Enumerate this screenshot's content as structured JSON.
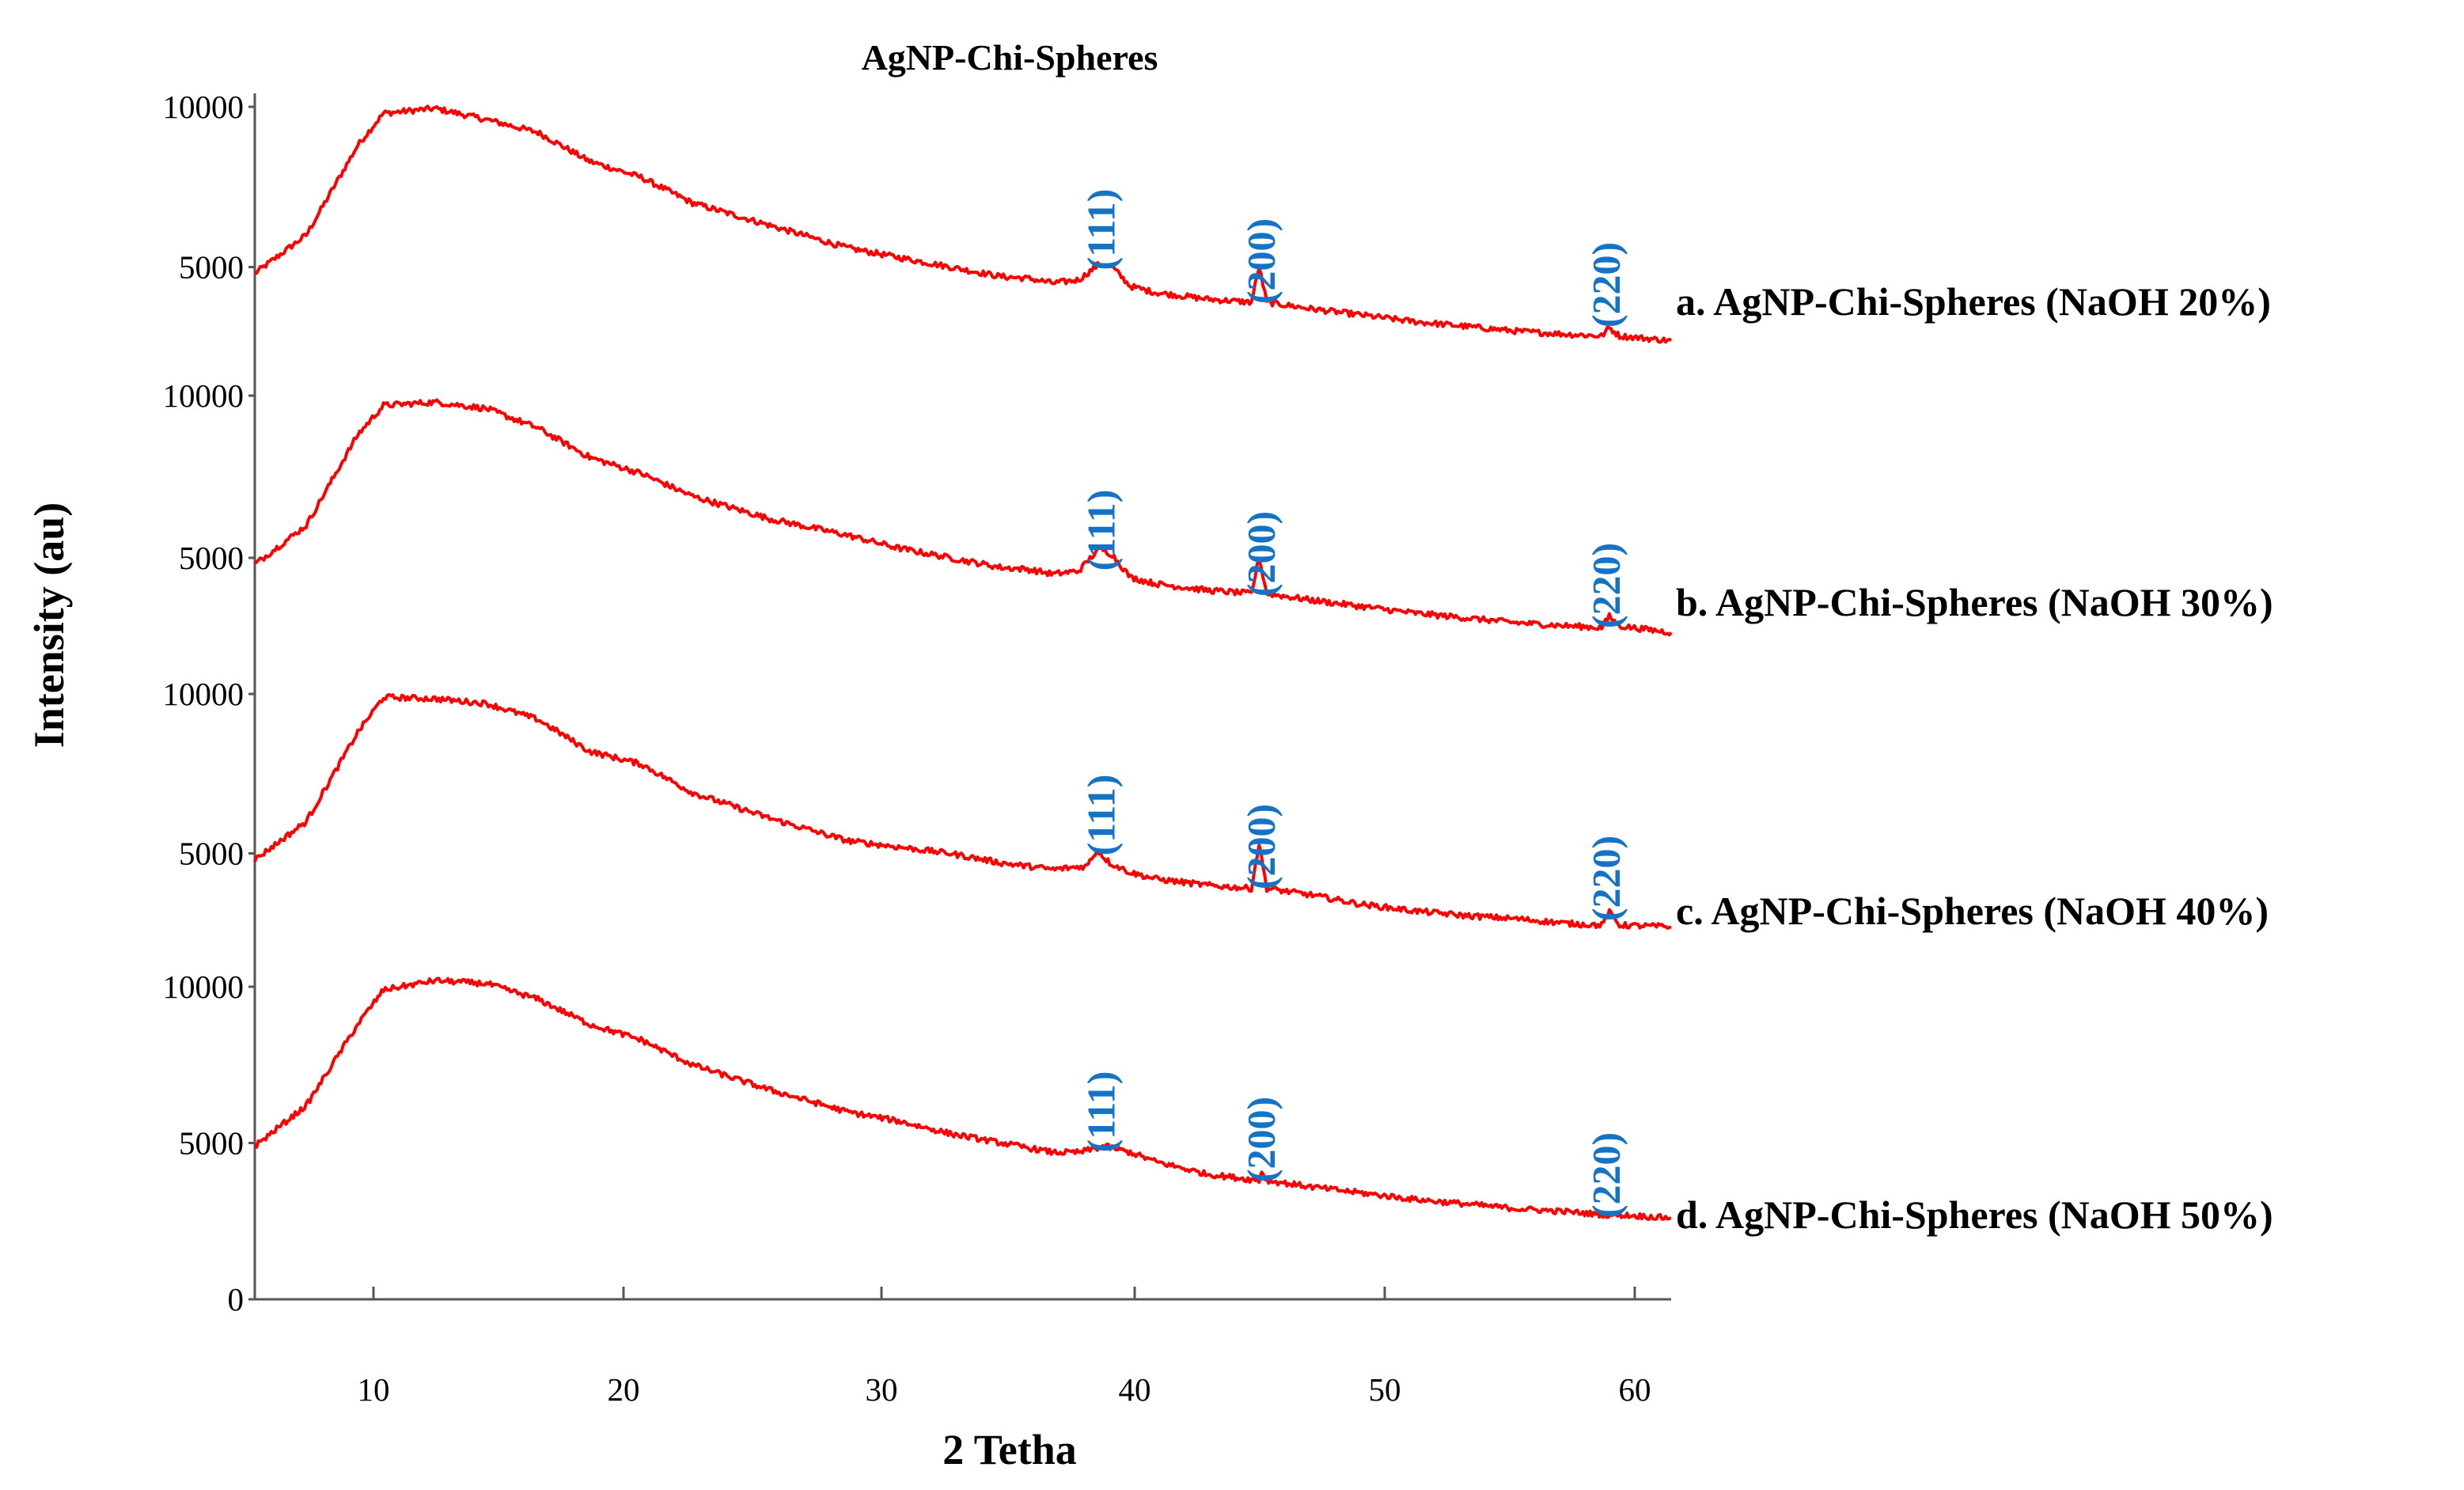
{
  "chart_data": {
    "type": "line",
    "title": "AgNP-Chi-Spheres",
    "xlabel": "2 Tetha",
    "ylabel": "Intensity (au)",
    "xlim": [
      5,
      60
    ],
    "x_ticks": [
      10,
      20,
      30,
      40,
      50,
      60
    ],
    "x_tick_labels": [
      "10",
      "20",
      "30",
      "40",
      "50",
      "60"
    ],
    "ylim": [
      0,
      10000
    ],
    "y_tick_labels": [
      {
        "value": 0,
        "label": "0"
      },
      {
        "value": 5000,
        "label": "5000"
      },
      {
        "value": 10000,
        "label": "10000"
      }
    ],
    "offset_panels": true,
    "series": [
      {
        "name": "a. AgNP-Chi-Spheres (NaOH 20%)",
        "points": [
          [
            5,
            4800
          ],
          [
            7,
            6000
          ],
          [
            9,
            8800
          ],
          [
            10,
            9800
          ],
          [
            12,
            9950
          ],
          [
            14,
            9600
          ],
          [
            16,
            9200
          ],
          [
            18,
            8300
          ],
          [
            20,
            7800
          ],
          [
            22,
            7000
          ],
          [
            25,
            6300
          ],
          [
            28,
            5600
          ],
          [
            30,
            5300
          ],
          [
            32,
            5000
          ],
          [
            34,
            4700
          ],
          [
            35,
            4650
          ],
          [
            36,
            4500
          ],
          [
            37,
            4600
          ],
          [
            37.8,
            5100
          ],
          [
            38.3,
            5000
          ],
          [
            39,
            4400
          ],
          [
            40,
            4200
          ],
          [
            42,
            4000
          ],
          [
            43.7,
            3900
          ],
          [
            44,
            5000
          ],
          [
            44.3,
            3900
          ],
          [
            46,
            3700
          ],
          [
            48,
            3500
          ],
          [
            50,
            3300
          ],
          [
            52,
            3150
          ],
          [
            54,
            3000
          ],
          [
            56,
            2900
          ],
          [
            57.3,
            2850
          ],
          [
            57.6,
            3100
          ],
          [
            58,
            2850
          ],
          [
            60,
            2700
          ]
        ]
      },
      {
        "name": "b. AgNP-Chi-Spheres (NaOH 30%)",
        "points": [
          [
            5,
            4800
          ],
          [
            7,
            6000
          ],
          [
            9,
            8800
          ],
          [
            10,
            9700
          ],
          [
            12,
            9800
          ],
          [
            14,
            9600
          ],
          [
            16,
            9000
          ],
          [
            18,
            8100
          ],
          [
            20,
            7600
          ],
          [
            22,
            6900
          ],
          [
            25,
            6200
          ],
          [
            28,
            5700
          ],
          [
            30,
            5300
          ],
          [
            32,
            5000
          ],
          [
            34,
            4700
          ],
          [
            35,
            4650
          ],
          [
            36,
            4500
          ],
          [
            37,
            4600
          ],
          [
            37.8,
            5300
          ],
          [
            38.3,
            5100
          ],
          [
            39,
            4400
          ],
          [
            40,
            4200
          ],
          [
            42,
            4000
          ],
          [
            43.7,
            3900
          ],
          [
            44,
            5000
          ],
          [
            44.3,
            3900
          ],
          [
            46,
            3700
          ],
          [
            48,
            3500
          ],
          [
            50,
            3300
          ],
          [
            52,
            3150
          ],
          [
            54,
            3000
          ],
          [
            56,
            2900
          ],
          [
            57.3,
            2850
          ],
          [
            57.6,
            3200
          ],
          [
            58,
            2900
          ],
          [
            60,
            2700
          ]
        ]
      },
      {
        "name": "c. AgNP-Chi-Spheres (NaOH 40%)",
        "points": [
          [
            5,
            4800
          ],
          [
            7,
            6000
          ],
          [
            9,
            8800
          ],
          [
            10,
            9900
          ],
          [
            12,
            9850
          ],
          [
            14,
            9700
          ],
          [
            16,
            9200
          ],
          [
            18,
            8200
          ],
          [
            20,
            7800
          ],
          [
            22,
            6900
          ],
          [
            25,
            6100
          ],
          [
            28,
            5400
          ],
          [
            30,
            5200
          ],
          [
            32,
            5000
          ],
          [
            34,
            4700
          ],
          [
            36,
            4500
          ],
          [
            37.3,
            4600
          ],
          [
            37.7,
            5100
          ],
          [
            38.2,
            4700
          ],
          [
            39,
            4400
          ],
          [
            40,
            4200
          ],
          [
            42,
            4000
          ],
          [
            43.7,
            3900
          ],
          [
            44,
            5300
          ],
          [
            44.3,
            3900
          ],
          [
            46,
            3700
          ],
          [
            48,
            3400
          ],
          [
            50,
            3200
          ],
          [
            52,
            3050
          ],
          [
            54,
            2950
          ],
          [
            56,
            2800
          ],
          [
            57.3,
            2750
          ],
          [
            57.6,
            3150
          ],
          [
            58,
            2750
          ],
          [
            60,
            2700
          ]
        ]
      },
      {
        "name": "d. AgNP-Chi-Spheres (NaOH 50%)",
        "points": [
          [
            5,
            4900
          ],
          [
            7,
            6200
          ],
          [
            9,
            8800
          ],
          [
            10,
            9900
          ],
          [
            12,
            10200
          ],
          [
            14,
            10100
          ],
          [
            16,
            9600
          ],
          [
            18,
            8800
          ],
          [
            20,
            8300
          ],
          [
            22,
            7500
          ],
          [
            25,
            6700
          ],
          [
            28,
            6000
          ],
          [
            30,
            5700
          ],
          [
            32,
            5300
          ],
          [
            34,
            5000
          ],
          [
            36,
            4700
          ],
          [
            37,
            4700
          ],
          [
            38,
            4900
          ],
          [
            39,
            4700
          ],
          [
            40,
            4400
          ],
          [
            42,
            4000
          ],
          [
            44,
            3800
          ],
          [
            44.1,
            4100
          ],
          [
            44.3,
            3800
          ],
          [
            46,
            3600
          ],
          [
            48,
            3400
          ],
          [
            50,
            3200
          ],
          [
            52,
            3050
          ],
          [
            54,
            2900
          ],
          [
            56,
            2800
          ],
          [
            57.5,
            2700
          ],
          [
            58,
            2700
          ],
          [
            60,
            2600
          ]
        ]
      }
    ],
    "annotations": [
      {
        "text": "(111)",
        "x": 37.9,
        "color": "#1573c6"
      },
      {
        "text": "(200)",
        "x": 44.1,
        "color": "#1573c6"
      },
      {
        "text": "(220)",
        "x": 57.5,
        "color": "#1573c6"
      }
    ],
    "line_color": "#ff0000"
  }
}
